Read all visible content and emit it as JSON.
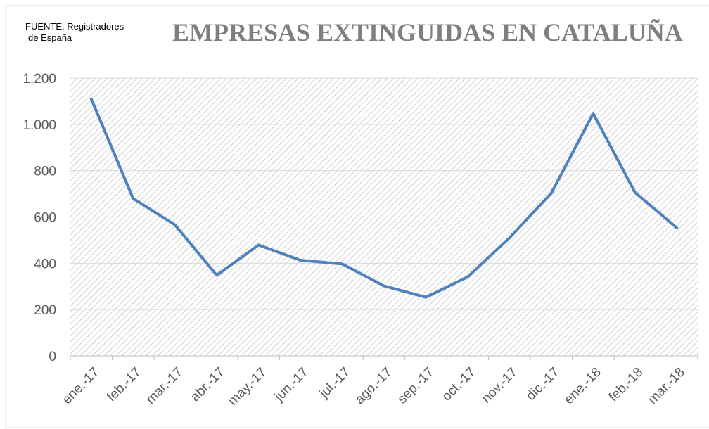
{
  "chart_data": {
    "type": "line",
    "title": "EMPRESAS EXTINGUIDAS EN CATALUÑA",
    "annotations": [
      "FUENTE: Registradores",
      "de España"
    ],
    "categories": [
      "ene.-17",
      "feb.-17",
      "mar.-17",
      "abr.-17",
      "may.-17",
      "jun.-17",
      "jul.-17",
      "ago.-17",
      "sep.-17",
      "oct.-17",
      "nov.-17",
      "dic.-17",
      "ene.-18",
      "feb.-18",
      "mar.-18"
    ],
    "series": [
      {
        "color": "#4f81bd",
        "values": [
          1110,
          680,
          566,
          348,
          479,
          413,
          397,
          302,
          253,
          341,
          510,
          703,
          1047,
          706,
          553
        ]
      }
    ],
    "ylim": [
      0,
      1200
    ],
    "yticks": [
      0,
      200,
      400,
      600,
      800,
      {
        "value": 1000,
        "label": "1.000"
      },
      {
        "value": 1200,
        "label": "1.200"
      }
    ],
    "grid": true
  }
}
